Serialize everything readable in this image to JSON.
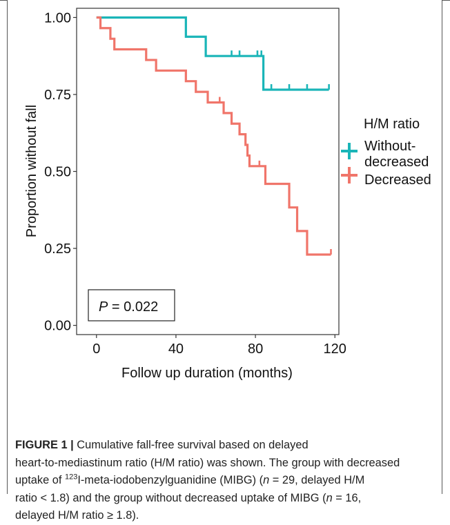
{
  "chart_data": {
    "type": "line",
    "subtype": "kaplan-meier step",
    "xlabel": "Follow up duration (months)",
    "ylabel": "Proportion without fall",
    "xlim": [
      -10,
      122
    ],
    "ylim": [
      -0.03,
      1.03
    ],
    "x_ticks": [
      0,
      40,
      80,
      120
    ],
    "x_tick_labels": [
      "0",
      "40",
      "80",
      "120"
    ],
    "y_ticks": [
      0.0,
      0.25,
      0.5,
      0.75,
      1.0
    ],
    "y_tick_labels": [
      "0.00",
      "0.25",
      "0.50",
      "0.75",
      "1.00"
    ],
    "grid": false,
    "legend": {
      "title": "H/M ratio",
      "placement": "right",
      "entries": [
        {
          "label_line1": "Without-",
          "label_line2": "decreased",
          "color": "#1ab5b8"
        },
        {
          "label_line1": "Decreased",
          "label_line2": "",
          "color": "#f0756a"
        }
      ]
    },
    "annotation": {
      "italic": "P",
      "rest": " = 0.022"
    },
    "series": [
      {
        "name": "Without-decreased",
        "color": "#1ab5b8",
        "steps": [
          [
            0,
            1.0
          ],
          [
            45,
            0.9375
          ],
          [
            55,
            0.875
          ],
          [
            84,
            0.7656
          ],
          [
            117,
            0.7656
          ]
        ],
        "censor": [
          [
            68,
            0.875
          ],
          [
            72,
            0.875
          ],
          [
            81,
            0.875
          ],
          [
            83,
            0.875
          ],
          [
            88,
            0.7656
          ],
          [
            97,
            0.7656
          ],
          [
            106,
            0.7656
          ],
          [
            117,
            0.7656
          ]
        ]
      },
      {
        "name": "Decreased",
        "color": "#f0756a",
        "steps": [
          [
            0,
            1.0
          ],
          [
            2,
            0.9655
          ],
          [
            7,
            0.931
          ],
          [
            9,
            0.8966
          ],
          [
            25,
            0.8621
          ],
          [
            30,
            0.8276
          ],
          [
            45,
            0.7931
          ],
          [
            50,
            0.7586
          ],
          [
            56,
            0.7241
          ],
          [
            64,
            0.6897
          ],
          [
            68,
            0.6552
          ],
          [
            72,
            0.6207
          ],
          [
            75,
            0.5862
          ],
          [
            76,
            0.5517
          ],
          [
            77,
            0.5172
          ],
          [
            85,
            0.4597
          ],
          [
            97,
            0.3831
          ],
          [
            101,
            0.3065
          ],
          [
            106,
            0.2299
          ],
          [
            118,
            0.2299
          ]
        ],
        "censor": [
          [
            62,
            0.7241
          ],
          [
            76,
            0.5517
          ],
          [
            82,
            0.5172
          ],
          [
            118,
            0.2299
          ]
        ]
      }
    ]
  },
  "caption": {
    "fig_label": "FIGURE 1 |",
    "line1": " Cumulative fall-free survival based on delayed",
    "line2": "heart-to-mediastinum ratio (H/M ratio) was shown. The group with decreased",
    "line3a": "uptake of ",
    "sup123": "123",
    "line3b": "I-meta-iodobenzylguanidine (MIBG) (",
    "n": "n",
    "line3c": " = 29, delayed H/M",
    "line4a": "ratio < 1.8) and the group without decreased uptake of MIBG (",
    "line4b": " = 16,",
    "line5": "delayed H/M ratio ≥ 1.8)."
  }
}
